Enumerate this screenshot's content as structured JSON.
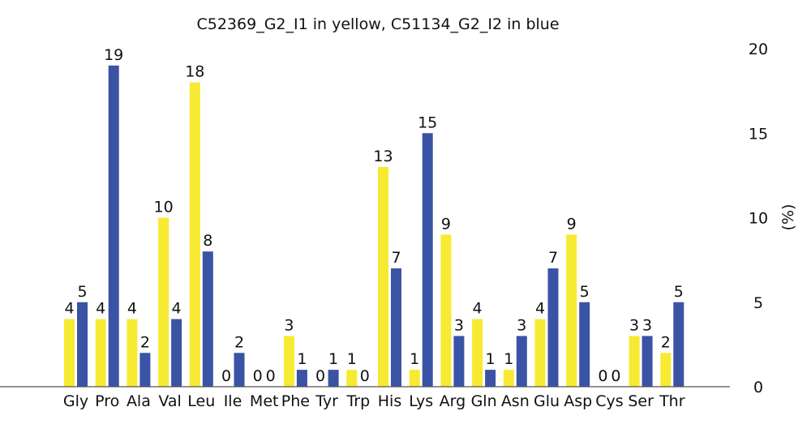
{
  "chart_data": {
    "type": "bar",
    "title": "C52369_G2_I1 in yellow, C51134_G2_I2 in blue",
    "xlabel": "",
    "ylabel": "(%)",
    "ylim": [
      0,
      20
    ],
    "yticks": [
      0,
      5,
      10,
      15,
      20
    ],
    "y_axis_side": "right",
    "grid": false,
    "legend": "none",
    "categories": [
      "Gly",
      "Pro",
      "Ala",
      "Val",
      "Leu",
      "Ile",
      "Met",
      "Phe",
      "Tyr",
      "Trp",
      "His",
      "Lys",
      "Arg",
      "Gln",
      "Asn",
      "Glu",
      "Asp",
      "Cys",
      "Ser",
      "Thr"
    ],
    "series": [
      {
        "color": "#f7ea33",
        "values": [
          4,
          4,
          4,
          10,
          18,
          0,
          0,
          3,
          0,
          1,
          13,
          1,
          9,
          4,
          1,
          4,
          9,
          0,
          3,
          2
        ]
      },
      {
        "color": "#3a53a4",
        "values": [
          5,
          19,
          2,
          4,
          8,
          2,
          0,
          1,
          1,
          0,
          7,
          15,
          3,
          1,
          3,
          7,
          5,
          0,
          3,
          5
        ]
      }
    ]
  }
}
